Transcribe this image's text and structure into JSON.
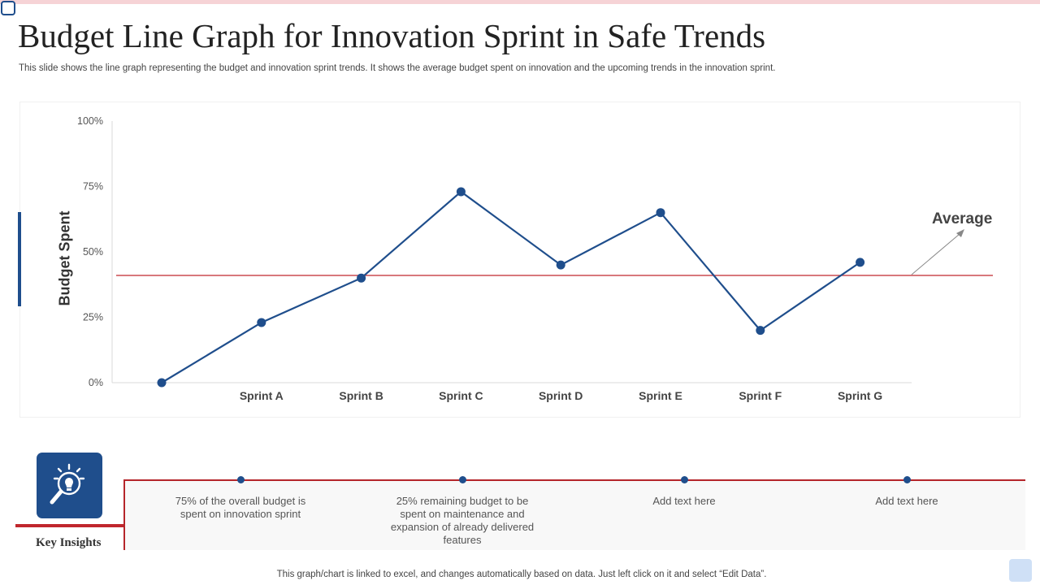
{
  "title": "Budget Line Graph for Innovation Sprint in Safe Trends",
  "subtitle": "This slide shows the line graph representing the budget and innovation sprint trends. It shows the average budget spent on innovation and the upcoming trends in the innovation sprint.",
  "colors": {
    "series": "#1f4e8c",
    "average_line": "#c0272d",
    "accent": "#b5252a"
  },
  "chart_data": {
    "type": "line",
    "title": "",
    "xlabel": "",
    "ylabel": "Budget Spent",
    "categories": [
      "",
      "Sprint A",
      "Sprint B",
      "Sprint C",
      "Sprint D",
      "Sprint E",
      "Sprint F",
      "Sprint G"
    ],
    "series": [
      {
        "name": "Budget Spent",
        "values": [
          0,
          23,
          40,
          73,
          45,
          65,
          20,
          46
        ]
      }
    ],
    "average": 41,
    "average_label": "Average",
    "yticks": [
      0,
      25,
      50,
      75,
      100
    ],
    "ytick_labels": [
      "0%",
      "25%",
      "50%",
      "75%",
      "100%"
    ],
    "ylim": [
      0,
      100
    ],
    "grid": false
  },
  "insights": {
    "heading": "Key Insights",
    "icon": "lightbulb-magnifier-icon",
    "items": [
      "75% of the overall budget is spent on innovation sprint",
      "25% remaining budget to be spent on maintenance and expansion of already delivered features",
      "Add text here",
      "Add text here"
    ]
  },
  "footer_note": "This graph/chart is linked to excel, and changes automatically based on data. Just left click on it and select “Edit Data”."
}
